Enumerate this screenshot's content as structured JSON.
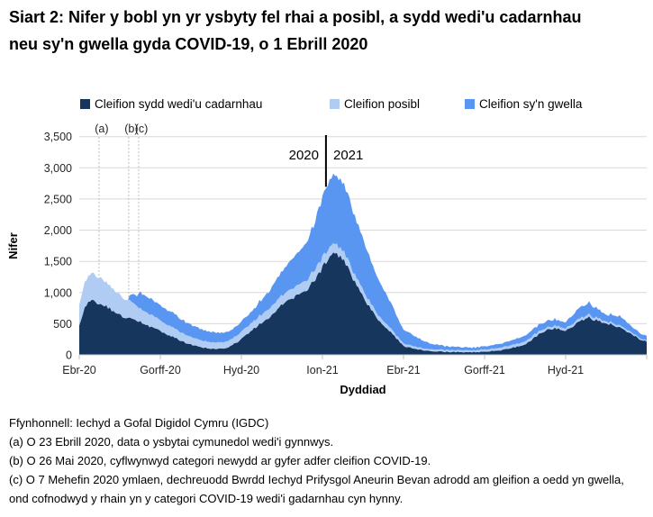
{
  "title": "Siart 2: Nifer y bobl yn yr ysbyty fel rhai a posibl, a sydd wedi'u cadarnhau neu sy'n gwella gyda COVID-19, o 1 Ebrill 2020",
  "legend": [
    {
      "label": "Cleifion sydd wedi'u cadarnhau",
      "color": "#17365D"
    },
    {
      "label": "Cleifion posibl",
      "color": "#B0CCF3"
    },
    {
      "label": "Cleifion sy'n gwella",
      "color": "#5896F2"
    }
  ],
  "chart_data": {
    "type": "area",
    "stacked": true,
    "title": "Siart 2: Nifer y bobl yn yr ysbyty fel rhai a posibl, a sydd wedi'u cadarnhau neu sy'n gwella gyda COVID-19, o 1 Ebrill 2020",
    "xlabel": "Dyddiad",
    "ylabel": "Nifer",
    "ylim": [
      0,
      3500
    ],
    "ytick_interval": 500,
    "ytick_labels": [
      "0",
      "500",
      "1,000",
      "1,500",
      "2,000",
      "2,500",
      "3,000",
      "3,500"
    ],
    "grid": "horizontal",
    "legend_position": "top",
    "x_unit": "months since 1 April 2020",
    "xlim": [
      0,
      21
    ],
    "xtick_positions": [
      0,
      3,
      6,
      9,
      12,
      15,
      18,
      21
    ],
    "xticks": [
      {
        "pos": 0,
        "label": "Ebr-20"
      },
      {
        "pos": 3,
        "label": "Gorff-20"
      },
      {
        "pos": 6,
        "label": "Hyd-20"
      },
      {
        "pos": 9,
        "label": "Ion-21"
      },
      {
        "pos": 12,
        "label": "Ebr-21"
      },
      {
        "pos": 15,
        "label": "Gorff-21"
      },
      {
        "pos": 18,
        "label": "Hyd-21"
      }
    ],
    "x": [
      0,
      0.2,
      0.4,
      0.6,
      0.75,
      1.0,
      1.25,
      1.5,
      1.8,
      1.85,
      2.0,
      2.15,
      2.2,
      2.5,
      2.75,
      3.0,
      3.5,
      4.0,
      4.5,
      5.0,
      5.5,
      6.0,
      6.5,
      7.0,
      7.5,
      7.8,
      8.1,
      8.4,
      8.7,
      9.0,
      9.2,
      9.4,
      9.6,
      9.8,
      10.0,
      10.3,
      10.6,
      11.0,
      11.5,
      12.0,
      12.5,
      13.0,
      13.5,
      14.0,
      14.5,
      15.0,
      15.5,
      16.0,
      16.5,
      17.0,
      17.3,
      17.6,
      18.0,
      18.3,
      18.6,
      18.85,
      19.1,
      19.5,
      20.0,
      20.4,
      20.7,
      21.0
    ],
    "series": [
      {
        "name": "Cleifion sydd wedi'u cadarnhau",
        "color": "#17365D",
        "values": [
          460,
          760,
          880,
          850,
          820,
          780,
          700,
          640,
          590,
          580,
          560,
          545,
          540,
          480,
          430,
          380,
          280,
          180,
          120,
          95,
          110,
          250,
          430,
          600,
          800,
          880,
          950,
          1020,
          1200,
          1400,
          1520,
          1610,
          1580,
          1500,
          1330,
          1080,
          850,
          600,
          380,
          140,
          90,
          60,
          50,
          45,
          42,
          50,
          70,
          110,
          160,
          330,
          400,
          430,
          390,
          470,
          560,
          600,
          560,
          515,
          440,
          350,
          260,
          210
        ]
      },
      {
        "name": "Cleifion posibl",
        "color": "#B0CCF3",
        "values": [
          340,
          400,
          420,
          430,
          430,
          390,
          350,
          320,
          290,
          280,
          260,
          235,
          220,
          200,
          185,
          170,
          150,
          130,
          110,
          100,
          100,
          115,
          130,
          140,
          150,
          150,
          155,
          155,
          160,
          160,
          155,
          150,
          145,
          140,
          130,
          115,
          100,
          80,
          60,
          40,
          35,
          30,
          30,
          30,
          30,
          35,
          40,
          45,
          50,
          45,
          40,
          40,
          40,
          45,
          45,
          45,
          40,
          35,
          30,
          25,
          20,
          20
        ]
      },
      {
        "name": "Cleifion sy'n gwella",
        "color": "#5896F2",
        "values": [
          0,
          0,
          0,
          0,
          0,
          0,
          0,
          0,
          0,
          60,
          150,
          160,
          250,
          260,
          250,
          240,
          230,
          200,
          180,
          160,
          150,
          160,
          200,
          280,
          380,
          450,
          530,
          600,
          740,
          980,
          1060,
          1110,
          1100,
          1090,
          1000,
          900,
          770,
          600,
          420,
          220,
          150,
          90,
          60,
          50,
          45,
          50,
          60,
          75,
          90,
          110,
          110,
          100,
          100,
          150,
          180,
          185,
          155,
          110,
          150,
          105,
          80,
          75
        ]
      }
    ],
    "annotations": {
      "year_divider": {
        "pos": 9.13,
        "left_label": "2020",
        "right_label": "2021"
      },
      "markers": [
        {
          "label": "(a)",
          "pos": 0.73
        },
        {
          "label": "(b)",
          "pos": 1.83
        },
        {
          "label": "(c)",
          "pos": 2.2
        }
      ]
    }
  },
  "footnotes": {
    "source": "Ffynhonnell: Iechyd a Gofal Digidol Cymru (IGDC)",
    "notes": [
      "(a) O 23 Ebrill 2020, data o ysbytai cymunedol wedi'i gynnwys.",
      "(b) O 26 Mai 2020, cyflwynwyd categori newydd ar gyfer adfer cleifion COVID-19.",
      "(c) O 7 Mehefin 2020 ymlaen, dechreuodd Bwrdd Iechyd Prifysgol Aneurin Bevan adrodd am gleifion a oedd yn gwella, ond cofnodwyd y rhain yn y categori COVID-19 wedi'i gadarnhau cyn hynny."
    ]
  }
}
